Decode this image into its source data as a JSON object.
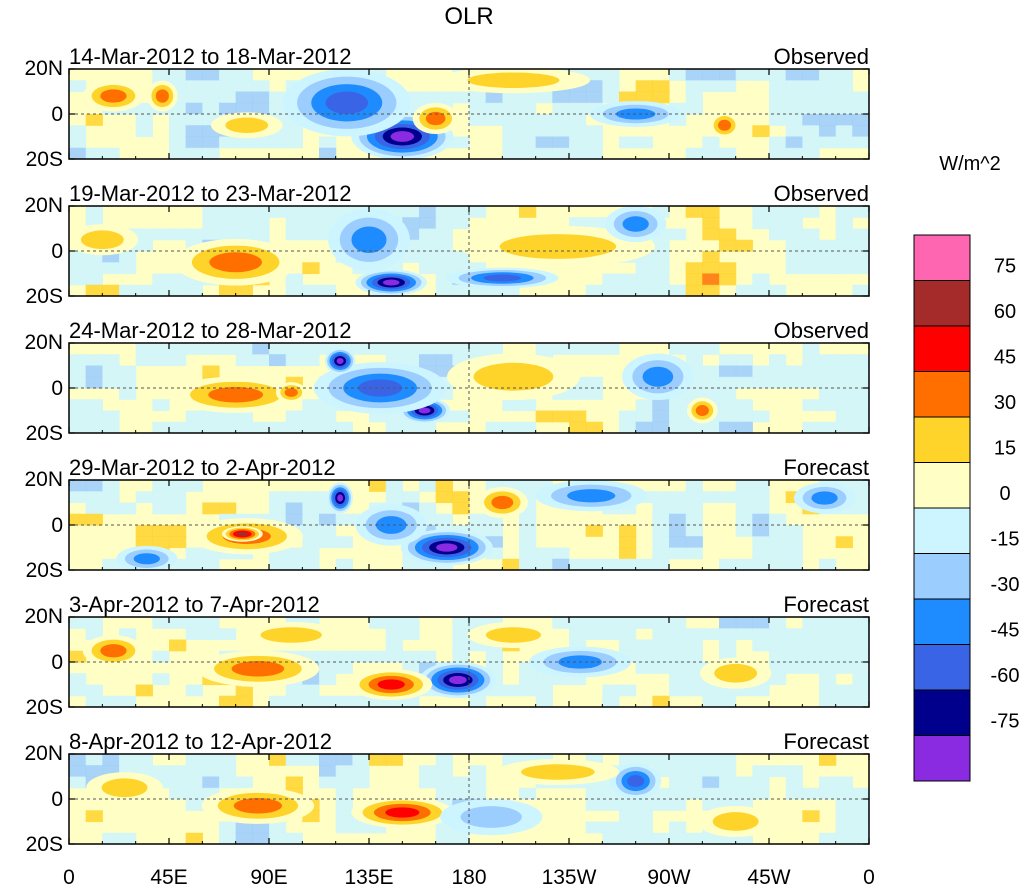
{
  "chart_data": {
    "type": "heatmap",
    "title": "OLR",
    "units": "W/m^2",
    "x_ticks": [
      "0",
      "45E",
      "90E",
      "135E",
      "180",
      "135W",
      "90W",
      "45W",
      "0"
    ],
    "y_ticks": [
      "20N",
      "0",
      "20S"
    ],
    "xlim": [
      0,
      360
    ],
    "ylim": [
      -20,
      20
    ],
    "colorbar": {
      "labels": [
        "75",
        "60",
        "45",
        "30",
        "15",
        "0",
        "-15",
        "-30",
        "-45",
        "-60",
        "-75"
      ],
      "colors": [
        "#ff66b2",
        "#a52a2a",
        "#ff0000",
        "#ff6f00",
        "#ffd42a",
        "#ffffc5",
        "#cdf5ff",
        "#9bcdff",
        "#1e8cff",
        "#3a64e6",
        "#00008c",
        "#8a2be2"
      ]
    },
    "panels": [
      {
        "period": "14-Mar-2012 to 18-Mar-2012",
        "kind": "Observed",
        "features": [
          {
            "lon": 150,
            "lat": -10,
            "v": -90,
            "rx": 20,
            "ry": 9
          },
          {
            "lon": 125,
            "lat": 5,
            "v": -50,
            "rx": 25,
            "ry": 13
          },
          {
            "lon": 165,
            "lat": -2,
            "v": 45,
            "rx": 9,
            "ry": 6
          },
          {
            "lon": 80,
            "lat": -5,
            "v": 30,
            "rx": 14,
            "ry": 5
          },
          {
            "lon": 20,
            "lat": 8,
            "v": 35,
            "rx": 12,
            "ry": 6
          },
          {
            "lon": 42,
            "lat": 8,
            "v": 35,
            "rx": 6,
            "ry": 6
          },
          {
            "lon": 200,
            "lat": 15,
            "v": 20,
            "rx": 30,
            "ry": 5
          },
          {
            "lon": 295,
            "lat": -5,
            "v": 35,
            "rx": 6,
            "ry": 5
          },
          {
            "lon": 255,
            "lat": 0,
            "v": -35,
            "rx": 18,
            "ry": 5
          }
        ]
      },
      {
        "period": "19-Mar-2012 to 23-Mar-2012",
        "kind": "Observed",
        "features": [
          {
            "lon": 75,
            "lat": -5,
            "v": 35,
            "rx": 24,
            "ry": 9
          },
          {
            "lon": 145,
            "lat": -14,
            "v": -80,
            "rx": 14,
            "ry": 5
          },
          {
            "lon": 135,
            "lat": 5,
            "v": -45,
            "rx": 16,
            "ry": 12
          },
          {
            "lon": 195,
            "lat": -12,
            "v": -50,
            "rx": 22,
            "ry": 4
          },
          {
            "lon": 220,
            "lat": 2,
            "v": 25,
            "rx": 38,
            "ry": 8
          },
          {
            "lon": 255,
            "lat": 12,
            "v": -45,
            "rx": 12,
            "ry": 7
          },
          {
            "lon": 15,
            "lat": 5,
            "v": 25,
            "rx": 14,
            "ry": 6
          }
        ]
      },
      {
        "period": "24-Mar-2012 to 28-Mar-2012",
        "kind": "Observed",
        "features": [
          {
            "lon": 75,
            "lat": -3,
            "v": 35,
            "rx": 25,
            "ry": 7
          },
          {
            "lon": 100,
            "lat": -2,
            "v": 45,
            "rx": 6,
            "ry": 4
          },
          {
            "lon": 160,
            "lat": -10,
            "v": -80,
            "rx": 10,
            "ry": 5
          },
          {
            "lon": 140,
            "lat": 0,
            "v": -50,
            "rx": 26,
            "ry": 10
          },
          {
            "lon": 122,
            "lat": 12,
            "v": -85,
            "rx": 6,
            "ry": 5
          },
          {
            "lon": 200,
            "lat": 5,
            "v": 25,
            "rx": 26,
            "ry": 9
          },
          {
            "lon": 285,
            "lat": -10,
            "v": 40,
            "rx": 6,
            "ry": 5
          },
          {
            "lon": 265,
            "lat": 5,
            "v": -40,
            "rx": 14,
            "ry": 9
          }
        ]
      },
      {
        "period": "29-Mar-2012 to 2-Apr-2012",
        "kind": "Forecast",
        "features": [
          {
            "lon": 170,
            "lat": -10,
            "v": -90,
            "rx": 18,
            "ry": 7
          },
          {
            "lon": 80,
            "lat": -5,
            "v": 45,
            "rx": 22,
            "ry": 7
          },
          {
            "lon": 78,
            "lat": -4,
            "v": 62,
            "rx": 8,
            "ry": 3
          },
          {
            "lon": 145,
            "lat": 0,
            "v": -45,
            "rx": 14,
            "ry": 8
          },
          {
            "lon": 122,
            "lat": 12,
            "v": -85,
            "rx": 5,
            "ry": 6
          },
          {
            "lon": 235,
            "lat": 13,
            "v": -40,
            "rx": 22,
            "ry": 6
          },
          {
            "lon": 195,
            "lat": 10,
            "v": 35,
            "rx": 10,
            "ry": 6
          },
          {
            "lon": 35,
            "lat": -15,
            "v": -40,
            "rx": 12,
            "ry": 5
          },
          {
            "lon": 340,
            "lat": 12,
            "v": -35,
            "rx": 12,
            "ry": 6
          }
        ]
      },
      {
        "period": "3-Apr-2012 to 7-Apr-2012",
        "kind": "Forecast",
        "features": [
          {
            "lon": 175,
            "lat": -8,
            "v": -85,
            "rx": 15,
            "ry": 7
          },
          {
            "lon": 145,
            "lat": -10,
            "v": 50,
            "rx": 16,
            "ry": 6
          },
          {
            "lon": 85,
            "lat": -3,
            "v": 40,
            "rx": 24,
            "ry": 7
          },
          {
            "lon": 20,
            "lat": 5,
            "v": 35,
            "rx": 12,
            "ry": 6
          },
          {
            "lon": 230,
            "lat": 0,
            "v": -40,
            "rx": 20,
            "ry": 6
          },
          {
            "lon": 300,
            "lat": -5,
            "v": 25,
            "rx": 14,
            "ry": 6
          },
          {
            "lon": 100,
            "lat": 12,
            "v": 25,
            "rx": 20,
            "ry": 5
          },
          {
            "lon": 200,
            "lat": 12,
            "v": 25,
            "rx": 18,
            "ry": 5
          }
        ]
      },
      {
        "period": "8-Apr-2012 to 12-Apr-2012",
        "kind": "Forecast",
        "features": [
          {
            "lon": 150,
            "lat": -6,
            "v": 50,
            "rx": 20,
            "ry": 6
          },
          {
            "lon": 85,
            "lat": -3,
            "v": 35,
            "rx": 22,
            "ry": 7
          },
          {
            "lon": 255,
            "lat": 8,
            "v": -60,
            "rx": 10,
            "ry": 7
          },
          {
            "lon": 190,
            "lat": -8,
            "v": -25,
            "rx": 20,
            "ry": 7
          },
          {
            "lon": 25,
            "lat": 5,
            "v": 25,
            "rx": 15,
            "ry": 6
          },
          {
            "lon": 300,
            "lat": -10,
            "v": 25,
            "rx": 15,
            "ry": 6
          },
          {
            "lon": 220,
            "lat": 12,
            "v": 20,
            "rx": 24,
            "ry": 5
          }
        ]
      }
    ]
  }
}
